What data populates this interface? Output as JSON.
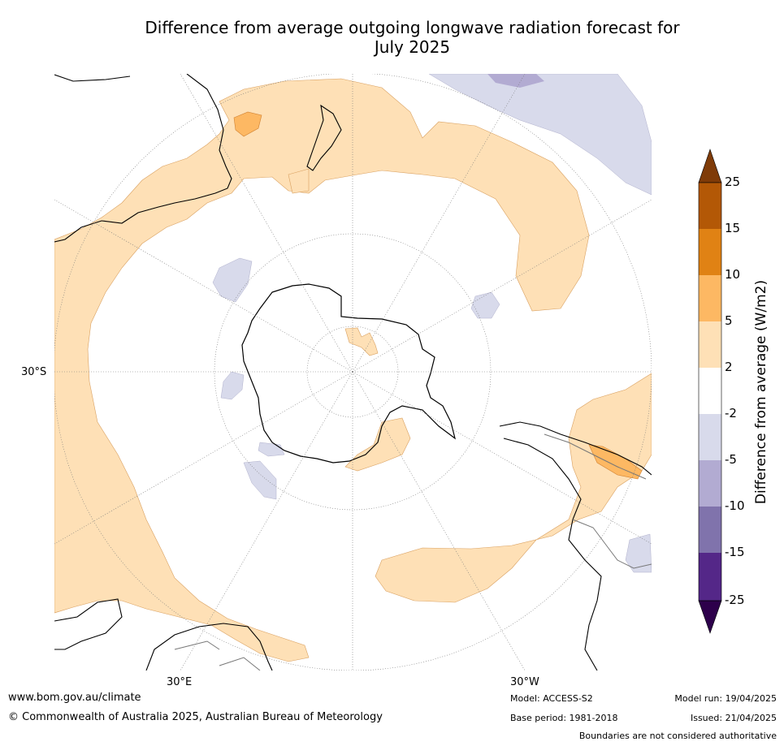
{
  "title_line1": "Difference from average outgoing longwave radiation forecast for",
  "title_line2": "July 2025",
  "lat_label": "30°S",
  "lon_labels": {
    "east": "30°E",
    "west": "30°W"
  },
  "colorbar": {
    "title": "Difference from average (W/m2)",
    "ticks": [
      "25",
      "15",
      "10",
      "5",
      "2",
      "-2",
      "-5",
      "-10",
      "-15",
      "-25"
    ],
    "colors": {
      "extend_top": "#7f3b08",
      "15_25": "#b35806",
      "10_15": "#e08214",
      "5_10": "#fdb863",
      "2_5": "#fee0b6",
      "neg2_2": "#ffffff",
      "neg5_neg2": "#d8daeb",
      "neg10_neg5": "#b2abd2",
      "neg15_neg10": "#8073ac",
      "neg25_neg15": "#542788",
      "extend_bottom": "#2d004b"
    }
  },
  "footer": {
    "website": "www.bom.gov.au/climate",
    "copyright": "© Commonwealth of Australia 2025, Australian Bureau of Meteorology",
    "model": "Model: ACCESS-S2",
    "base_period": "Base period: 1981-2018",
    "model_run": "Model run: 19/04/2025",
    "issued": "Issued: 21/04/2025",
    "disclaimer": "Boundaries are not considered authoritative"
  }
}
